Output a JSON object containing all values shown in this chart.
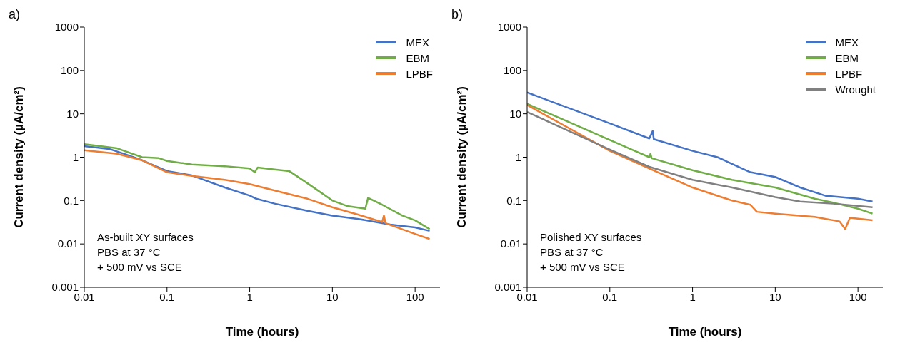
{
  "chart_data": [
    {
      "type": "line",
      "title": "a)",
      "xlabel": "Time (hours)",
      "ylabel": "Current density (µA/cm²)",
      "log": "xy",
      "xlim": [
        0.01,
        200
      ],
      "xticks": [
        0.01,
        0.1,
        1,
        10,
        100
      ],
      "ylim": [
        0.001,
        1000
      ],
      "yticks": [
        0.001,
        0.01,
        0.1,
        1,
        10,
        100,
        1000
      ],
      "grid": false,
      "legend": "top right",
      "annotations": [
        "As-built XY surfaces",
        "PBS at 37 °C",
        "+ 500 mV vs SCE"
      ],
      "series": [
        {
          "name": "MEX",
          "color": "#4472c4",
          "x": [
            0.01,
            0.02,
            0.03,
            0.05,
            0.1,
            0.2,
            0.5,
            1,
            1.2,
            2,
            5,
            10,
            20,
            50,
            100,
            150
          ],
          "values": [
            1.8,
            1.55,
            1.2,
            0.85,
            0.48,
            0.38,
            0.2,
            0.13,
            0.11,
            0.085,
            0.058,
            0.045,
            0.038,
            0.028,
            0.024,
            0.02
          ]
        },
        {
          "name": "EBM",
          "color": "#70ad47",
          "x": [
            0.01,
            0.025,
            0.05,
            0.08,
            0.1,
            0.2,
            0.5,
            1,
            1.15,
            1.25,
            2,
            3,
            5,
            10,
            15,
            25,
            27,
            40,
            70,
            100,
            150
          ],
          "values": [
            2.0,
            1.6,
            1.0,
            0.95,
            0.82,
            0.68,
            0.62,
            0.55,
            0.45,
            0.58,
            0.52,
            0.48,
            0.25,
            0.1,
            0.075,
            0.065,
            0.115,
            0.08,
            0.045,
            0.035,
            0.022
          ]
        },
        {
          "name": "LPBF",
          "color": "#ed7d31",
          "x": [
            0.01,
            0.025,
            0.05,
            0.1,
            0.2,
            0.5,
            1,
            2,
            5,
            10,
            20,
            40,
            42,
            44,
            100,
            150
          ],
          "values": [
            1.45,
            1.2,
            0.85,
            0.45,
            0.37,
            0.3,
            0.24,
            0.17,
            0.11,
            0.07,
            0.048,
            0.032,
            0.045,
            0.03,
            0.017,
            0.013
          ]
        }
      ]
    },
    {
      "type": "line",
      "title": "b)",
      "xlabel": "Time (hours)",
      "ylabel": "Current density (µA/cm²)",
      "log": "xy",
      "xlim": [
        0.01,
        200
      ],
      "xticks": [
        0.01,
        0.1,
        1,
        10,
        100
      ],
      "ylim": [
        0.001,
        1000
      ],
      "yticks": [
        0.001,
        0.01,
        0.1,
        1,
        10,
        100,
        1000
      ],
      "grid": false,
      "legend": "top right",
      "annotations": [
        "Polished XY surfaces",
        "PBS at 37 °C",
        "+ 500 mV vs SCE"
      ],
      "series": [
        {
          "name": "MEX",
          "color": "#4472c4",
          "x": [
            0.01,
            0.1,
            0.3,
            0.33,
            0.34,
            1,
            2,
            5,
            10,
            20,
            40,
            100,
            150
          ],
          "values": [
            31,
            6,
            2.7,
            4,
            2.6,
            1.4,
            1.0,
            0.45,
            0.35,
            0.2,
            0.13,
            0.11,
            0.095
          ]
        },
        {
          "name": "EBM",
          "color": "#70ad47",
          "x": [
            0.01,
            0.1,
            0.2,
            0.3,
            0.31,
            0.32,
            1,
            3,
            10,
            30,
            50,
            100,
            150
          ],
          "values": [
            17,
            2.5,
            1.4,
            1.0,
            1.2,
            0.95,
            0.5,
            0.3,
            0.2,
            0.11,
            0.09,
            0.065,
            0.05
          ]
        },
        {
          "name": "LPBF",
          "color": "#ed7d31",
          "x": [
            0.01,
            0.1,
            0.3,
            1,
            3,
            5,
            6,
            10,
            30,
            60,
            70,
            80,
            150
          ],
          "values": [
            16,
            1.4,
            0.55,
            0.2,
            0.1,
            0.08,
            0.055,
            0.05,
            0.042,
            0.033,
            0.022,
            0.04,
            0.035
          ]
        },
        {
          "name": "Wrought",
          "color": "#808080",
          "x": [
            0.01,
            0.1,
            0.3,
            1,
            3,
            10,
            20,
            50,
            150
          ],
          "values": [
            11,
            1.5,
            0.6,
            0.3,
            0.2,
            0.12,
            0.095,
            0.085,
            0.07
          ]
        }
      ]
    }
  ]
}
